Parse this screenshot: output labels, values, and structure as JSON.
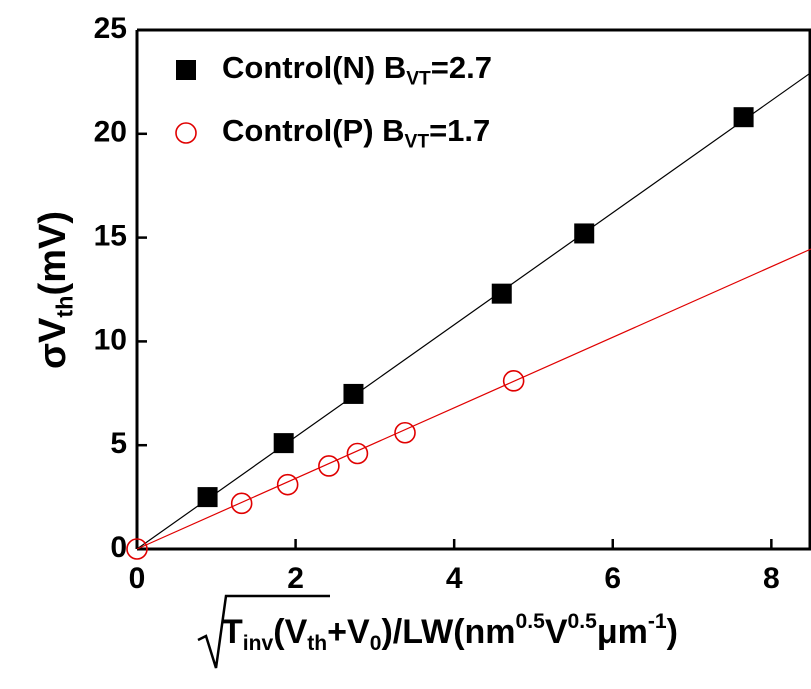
{
  "chart_data": {
    "type": "scatter",
    "xlim": [
      0,
      8.5
    ],
    "ylim": [
      0,
      25
    ],
    "xticks": [
      0,
      2,
      4,
      6,
      8
    ],
    "yticks": [
      0,
      5,
      10,
      15,
      20,
      25
    ],
    "ylabel": [
      {
        "text": "σV",
        "style": "normal"
      },
      {
        "text": "th",
        "style": "sub"
      },
      {
        "text": "(mV)",
        "style": "normal"
      }
    ],
    "xlabel": [
      {
        "text": "T",
        "style": "normal"
      },
      {
        "text": "inv",
        "style": "sub"
      },
      {
        "text": "(V",
        "style": "normal"
      },
      {
        "text": "th",
        "style": "sub"
      },
      {
        "text": "+V",
        "style": "normal"
      },
      {
        "text": "0",
        "style": "sub"
      },
      {
        "text": ")/LW",
        "style": "normal"
      },
      {
        "text": "(nm",
        "style": "normal"
      },
      {
        "text": "0.5",
        "style": "sup"
      },
      {
        "text": "V",
        "style": "normal"
      },
      {
        "text": "0.5",
        "style": "sup"
      },
      {
        "text": "μm",
        "style": "normal"
      },
      {
        "text": "-1",
        "style": "sup"
      },
      {
        "text": ")",
        "style": "normal"
      }
    ],
    "series": [
      {
        "name": [
          {
            "text": "Control(N) B",
            "style": "normal"
          },
          {
            "text": "VT",
            "style": "sub"
          },
          {
            "text": "=2.7",
            "style": "normal"
          }
        ],
        "color": "#000000",
        "marker": "square",
        "fit_slope": 2.7,
        "x": [
          0.89,
          1.85,
          2.73,
          4.6,
          5.64,
          7.65
        ],
        "values": [
          2.5,
          5.1,
          7.47,
          12.3,
          15.2,
          20.8
        ]
      },
      {
        "name": [
          {
            "text": "Control(P) B",
            "style": "normal"
          },
          {
            "text": "VT",
            "style": "sub"
          },
          {
            "text": "=1.7",
            "style": "normal"
          }
        ],
        "color": "#e00000",
        "marker": "circle",
        "fit_slope": 1.7,
        "x": [
          0,
          1.32,
          1.9,
          2.42,
          2.78,
          3.38,
          4.75
        ],
        "values": [
          0,
          2.2,
          3.1,
          4.0,
          4.6,
          5.6,
          8.1
        ]
      }
    ]
  }
}
